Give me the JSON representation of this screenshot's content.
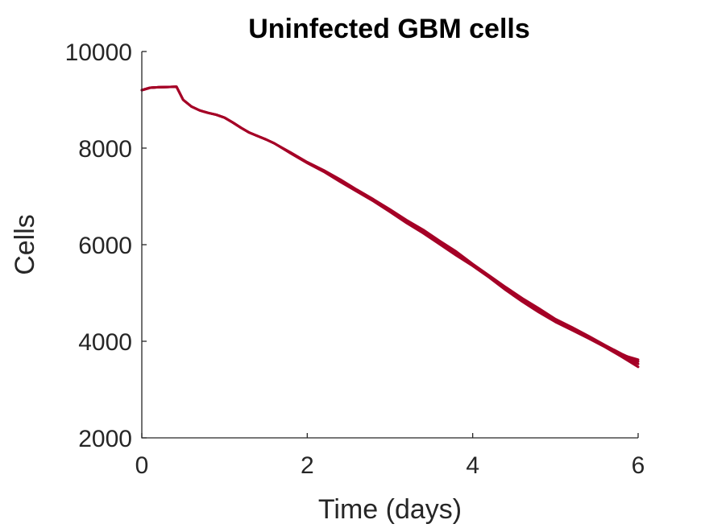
{
  "chart_data": {
    "type": "line",
    "title": "Uninfected GBM cells",
    "xlabel": "Time (days)",
    "ylabel": "Cells",
    "xlim": [
      0,
      6
    ],
    "ylim": [
      2000,
      10000
    ],
    "xticks": [
      0,
      2,
      4,
      6
    ],
    "yticks": [
      2000,
      4000,
      6000,
      8000,
      10000
    ],
    "grid": false,
    "line_color": "#A50026",
    "series": [
      {
        "x": [
          0,
          0.1,
          0.2,
          0.3,
          0.42,
          0.5,
          0.6,
          0.7,
          0.8,
          0.9,
          1.0,
          1.1,
          1.2,
          1.3,
          1.4,
          1.5,
          1.6,
          1.8,
          2.0,
          2.2,
          2.4,
          2.6,
          2.8,
          3.0,
          3.2,
          3.4,
          3.6,
          3.8,
          4.0,
          4.2,
          4.4,
          4.6,
          4.8,
          5.0,
          5.2,
          5.4,
          5.6,
          5.8,
          6.0
        ],
        "values": [
          9200,
          9250,
          9260,
          9265,
          9270,
          9000,
          8860,
          8780,
          8730,
          8690,
          8630,
          8530,
          8420,
          8320,
          8250,
          8180,
          8100,
          7900,
          7700,
          7530,
          7330,
          7120,
          6930,
          6720,
          6490,
          6280,
          6050,
          5820,
          5580,
          5340,
          5090,
          4860,
          4650,
          4440,
          4260,
          4080,
          3890,
          3700,
          3530
        ]
      },
      {
        "x": [
          0,
          0.1,
          0.2,
          0.3,
          0.42,
          0.5,
          0.6,
          0.7,
          0.8,
          0.9,
          1.0,
          1.1,
          1.2,
          1.3,
          1.4,
          1.5,
          1.6,
          1.8,
          2.0,
          2.2,
          2.4,
          2.6,
          2.8,
          3.0,
          3.2,
          3.4,
          3.6,
          3.8,
          4.0,
          4.2,
          4.4,
          4.6,
          4.8,
          5.0,
          5.2,
          5.4,
          5.6,
          5.8,
          6.0
        ],
        "values": [
          9200,
          9250,
          9260,
          9265,
          9270,
          9000,
          8860,
          8780,
          8730,
          8690,
          8630,
          8530,
          8420,
          8320,
          8250,
          8180,
          8100,
          7890,
          7690,
          7510,
          7300,
          7100,
          6900,
          6680,
          6450,
          6240,
          6010,
          5780,
          5560,
          5320,
          5060,
          4820,
          4600,
          4400,
          4230,
          4060,
          3880,
          3680,
          3470
        ]
      },
      {
        "x": [
          0,
          0.1,
          0.2,
          0.3,
          0.42,
          0.5,
          0.6,
          0.7,
          0.8,
          0.9,
          1.0,
          1.1,
          1.2,
          1.3,
          1.4,
          1.5,
          1.6,
          1.8,
          2.0,
          2.2,
          2.4,
          2.6,
          2.8,
          3.0,
          3.2,
          3.4,
          3.6,
          3.8,
          4.0,
          4.2,
          4.4,
          4.6,
          4.8,
          5.0,
          5.2,
          5.4,
          5.6,
          5.8,
          6.0
        ],
        "values": [
          9200,
          9250,
          9260,
          9265,
          9270,
          9000,
          8860,
          8780,
          8730,
          8690,
          8630,
          8530,
          8420,
          8320,
          8250,
          8180,
          8100,
          7910,
          7710,
          7540,
          7350,
          7140,
          6940,
          6730,
          6510,
          6310,
          6080,
          5860,
          5600,
          5360,
          5120,
          4890,
          4680,
          4460,
          4290,
          4110,
          3920,
          3740,
          3580
        ]
      },
      {
        "x": [
          0,
          0.1,
          0.2,
          0.3,
          0.42,
          0.5,
          0.6,
          0.7,
          0.8,
          0.9,
          1.0,
          1.1,
          1.2,
          1.3,
          1.4,
          1.5,
          1.6,
          1.8,
          2.0,
          2.2,
          2.4,
          2.6,
          2.8,
          3.0,
          3.2,
          3.4,
          3.6,
          3.8,
          4.0,
          4.2,
          4.4,
          4.6,
          4.8,
          5.0,
          5.2,
          5.4,
          5.6,
          5.8,
          6.0
        ],
        "values": [
          9200,
          9250,
          9260,
          9265,
          9270,
          9000,
          8860,
          8780,
          8730,
          8690,
          8630,
          8530,
          8420,
          8320,
          8250,
          8180,
          8100,
          7900,
          7700,
          7520,
          7320,
          7110,
          6920,
          6700,
          6470,
          6260,
          6030,
          5800,
          5570,
          5330,
          5080,
          4850,
          4630,
          4420,
          4250,
          4070,
          3900,
          3720,
          3620
        ]
      }
    ]
  }
}
